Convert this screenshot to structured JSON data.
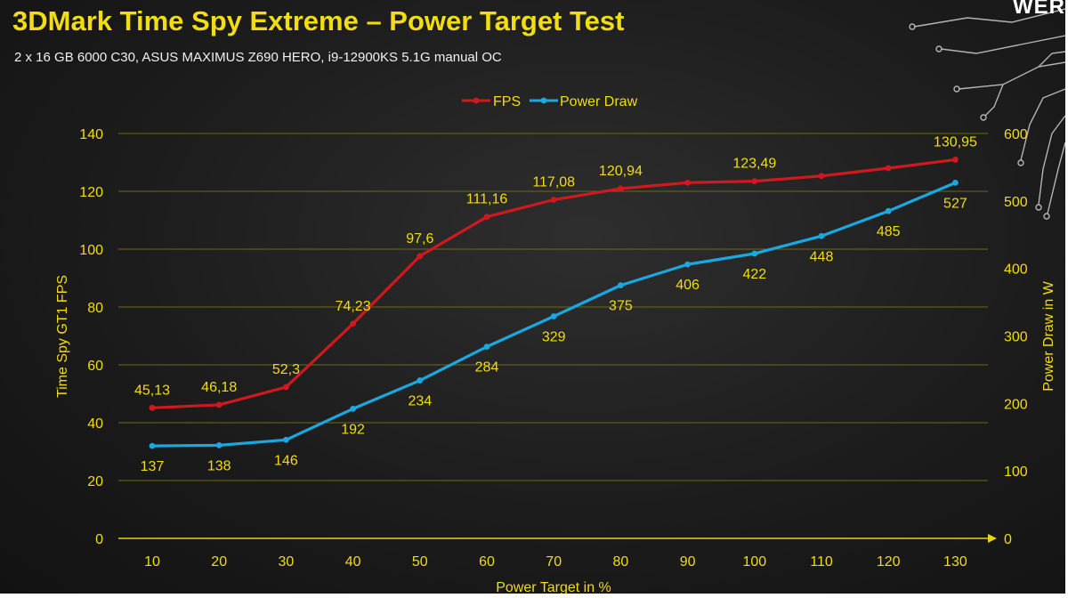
{
  "header": {
    "title": "3DMark Time Spy Extreme – Power Target Test",
    "subtitle": "2 x 16 GB 6000 C30, ASUS MAXIMUS Z690 HERO, i9-12900KS 5.1G manual OC",
    "brand": "WER"
  },
  "colors": {
    "fps": "#d0191e",
    "power": "#19a8e0",
    "text": "#f2dc12",
    "grid": "#6b6b12"
  },
  "chart_data": {
    "type": "line",
    "x": [
      10,
      20,
      30,
      40,
      50,
      60,
      70,
      80,
      90,
      100,
      110,
      120,
      130
    ],
    "xlabel": "Power Target in %",
    "ylabel": "Time Spy GT1 FPS",
    "y2label": "Power Draw in W",
    "ylim": [
      0,
      140
    ],
    "y2lim": [
      0,
      600
    ],
    "yticks": [
      0,
      20,
      40,
      60,
      80,
      100,
      120,
      140
    ],
    "y2ticks": [
      0,
      100,
      200,
      300,
      400,
      500,
      600
    ],
    "grid": true,
    "legend_position": "top",
    "series": [
      {
        "name": "FPS",
        "axis": "left",
        "values": [
          45.13,
          46.18,
          52.3,
          74.23,
          97.6,
          111.16,
          117.08,
          120.94,
          123,
          123.49,
          125.3,
          128,
          130.95
        ],
        "labels": [
          "45,13",
          "46,18",
          "52,3",
          "74,23",
          "97,6",
          "111,16",
          "117,08",
          "120,94",
          "",
          "123,49",
          "",
          "",
          "130,95"
        ]
      },
      {
        "name": "Power Draw",
        "axis": "right",
        "values": [
          137,
          138,
          146,
          192,
          234,
          284,
          329,
          375,
          406,
          422,
          448,
          485,
          527
        ],
        "labels": [
          "137",
          "138",
          "146",
          "192",
          "234",
          "284",
          "329",
          "375",
          "406",
          "422",
          "448",
          "485",
          "527"
        ]
      }
    ]
  }
}
